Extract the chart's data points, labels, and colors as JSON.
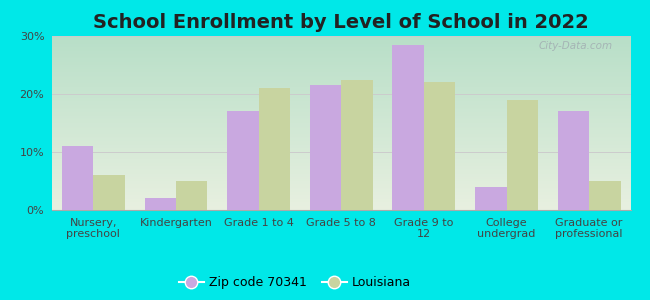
{
  "title": "School Enrollment by Level of School in 2022",
  "categories": [
    "Nursery,\npreschool",
    "Kindergarten",
    "Grade 1 to 4",
    "Grade 5 to 8",
    "Grade 9 to\n12",
    "College\nundergrad",
    "Graduate or\nprofessional"
  ],
  "zip_values": [
    11,
    2,
    17,
    21.5,
    28.5,
    4,
    17
  ],
  "la_values": [
    6,
    5,
    21,
    22.5,
    22,
    19,
    5
  ],
  "zip_color": "#c9a8e0",
  "la_color": "#c8d4a0",
  "zip_label": "Zip code 70341",
  "la_label": "Louisiana",
  "ylim": [
    0,
    30
  ],
  "yticks": [
    0,
    10,
    20,
    30
  ],
  "ytick_labels": [
    "0%",
    "10%",
    "20%",
    "30%"
  ],
  "bg_outer": "#00e8e8",
  "bg_plot_top": "#b8dfc8",
  "bg_plot_bottom": "#e8f0e0",
  "title_fontsize": 14,
  "tick_fontsize": 8,
  "legend_fontsize": 9,
  "bar_width": 0.38
}
